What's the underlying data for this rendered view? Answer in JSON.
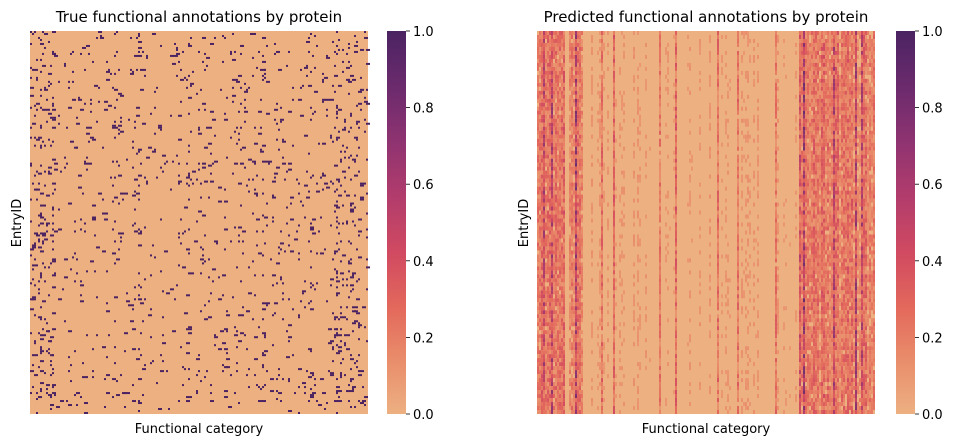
{
  "chart_data": [
    {
      "type": "heatmap",
      "title": "True functional annotations by protein",
      "xlabel": "Functional category",
      "ylabel": "EntryID",
      "colorbar": {
        "min": 0.0,
        "max": 1.0,
        "ticks": [
          "0.0",
          "0.2",
          "0.4",
          "0.6",
          "0.8",
          "1.0"
        ]
      },
      "colormap": [
        "#edb081",
        "#e98d6b",
        "#e3685c",
        "#d14a61",
        "#b13c6c",
        "#8f3371",
        "#6c2b6d",
        "#4b2362"
      ],
      "value_range": [
        0,
        1
      ],
      "description_values": "binary (0/1) matrix, mostly 0; x and y tick labels hidden"
    },
    {
      "type": "heatmap",
      "title": "Predicted functional annotations by protein",
      "xlabel": "Functional category",
      "ylabel": "EntryID",
      "colorbar": {
        "min": 0.0,
        "max": 1.0,
        "ticks": [
          "0.0",
          "0.2",
          "0.4",
          "0.6",
          "0.8",
          "1.0"
        ]
      },
      "colormap": [
        "#edb081",
        "#e98d6b",
        "#e3685c",
        "#d14a61",
        "#b13c6c",
        "#8f3371",
        "#6c2b6d",
        "#4b2362"
      ],
      "value_range": [
        0,
        1
      ],
      "description_values": "continuous probabilities, mostly low; x and y tick labels hidden"
    }
  ]
}
